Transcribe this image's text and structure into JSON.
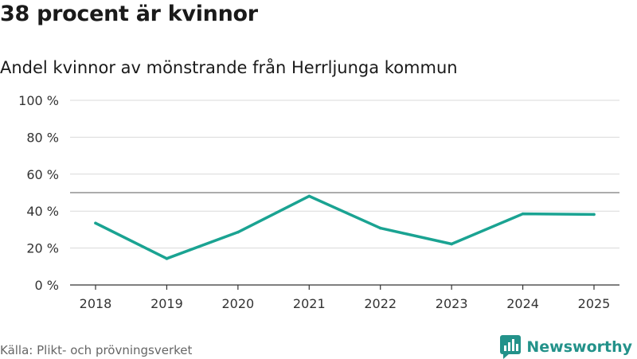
{
  "title": "38 procent är kvinnor",
  "subtitle": "Andel kvinnor av mönstrande från Herrljunga kommun",
  "source": "Källa: Plikt- och prövningsverket",
  "brand": {
    "name": "Newsworthy",
    "logo_icon": "bar-chart-speech-bubble-icon"
  },
  "colors": {
    "line": "#1aa392",
    "grid": "#d9d9d9",
    "reference": "#7a7a7a",
    "axis": "#333333",
    "brand": "#23928a"
  },
  "chart_data": {
    "type": "line",
    "title": "38 procent är kvinnor",
    "subtitle": "Andel kvinnor av mönstrande från Herrljunga kommun",
    "xlabel": "",
    "ylabel": "",
    "categories": [
      "2018",
      "2019",
      "2020",
      "2021",
      "2022",
      "2023",
      "2024",
      "2025"
    ],
    "series": [
      {
        "name": "Andel kvinnor",
        "values": [
          33.5,
          14.3,
          28.6,
          48.1,
          30.8,
          22.2,
          38.5,
          38.2
        ]
      }
    ],
    "reference_line": 50,
    "ylim": [
      0,
      100
    ],
    "yticks": [
      0,
      20,
      40,
      60,
      80,
      100
    ],
    "ytick_labels": [
      "0 %",
      "20 %",
      "40 %",
      "60 %",
      "80 %",
      "100 %"
    ],
    "grid": true,
    "legend": "none"
  }
}
